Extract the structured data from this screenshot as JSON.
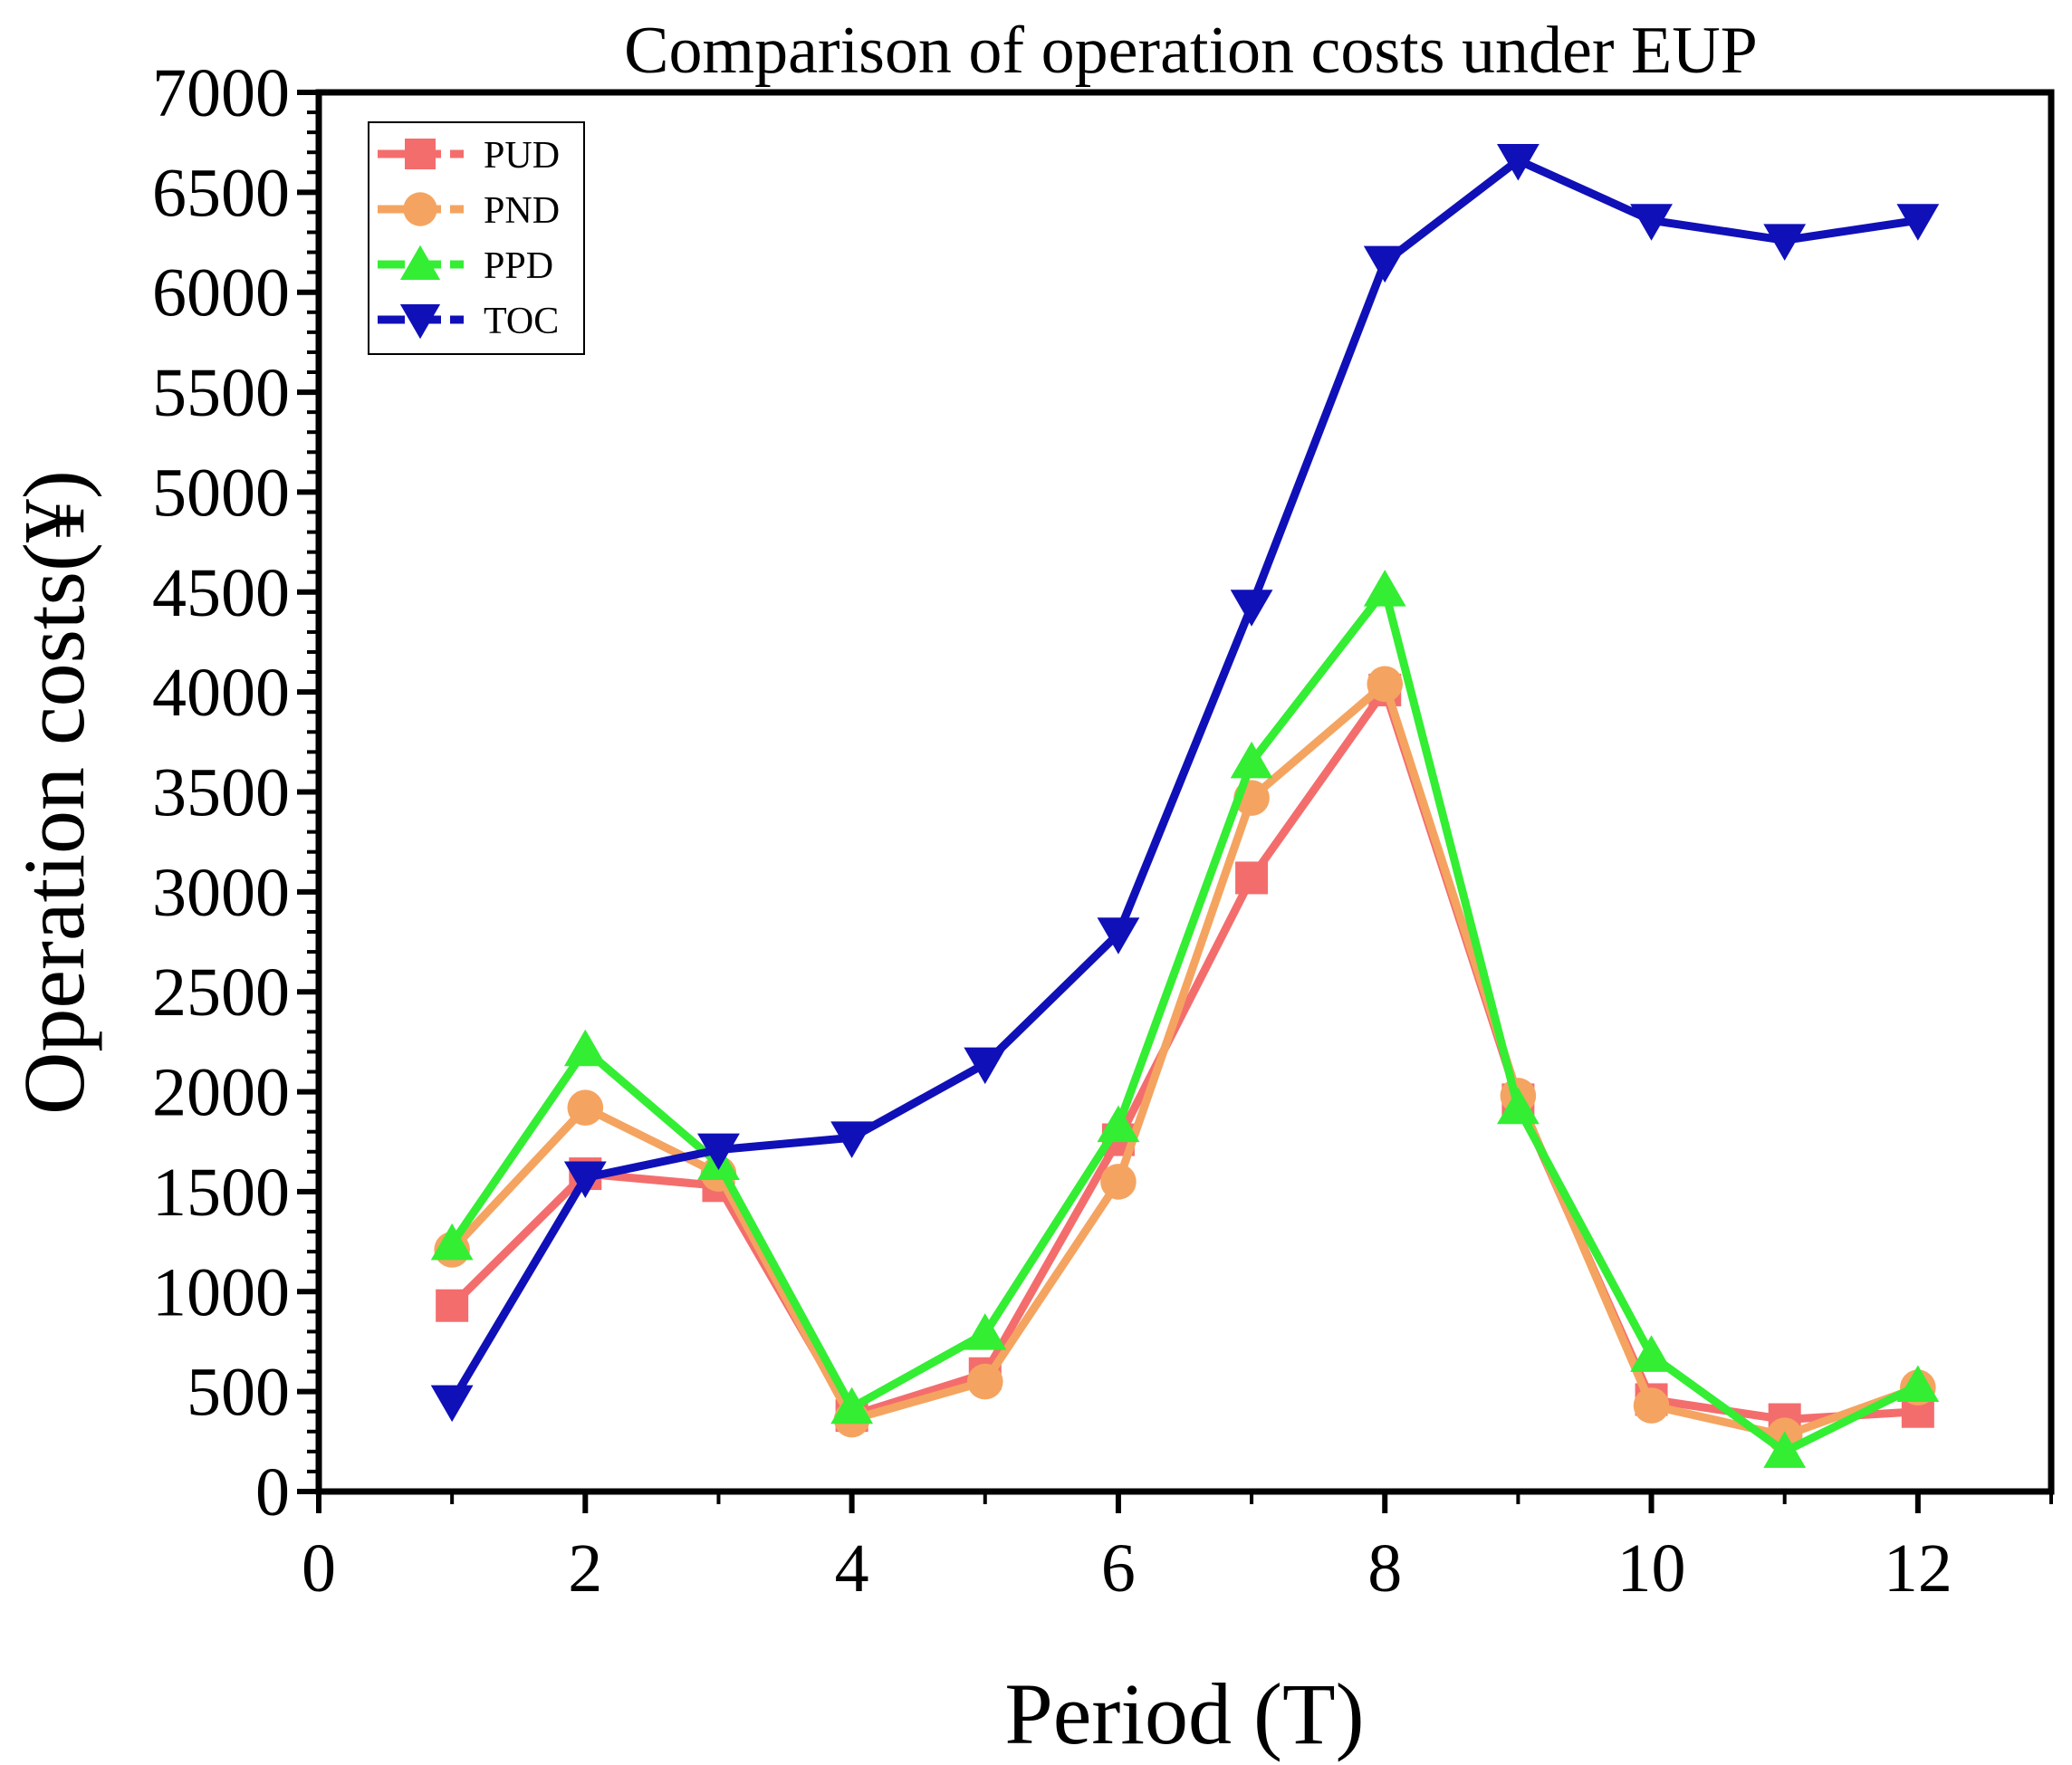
{
  "chart_data": {
    "type": "line",
    "title": "Comparison of operation costs under EUP",
    "xlabel": "Period (T)",
    "ylabel": "Operation costs(¥)",
    "xlim": [
      0,
      13
    ],
    "ylim": [
      0,
      7000
    ],
    "xticks": [
      "0",
      "2",
      "4",
      "6",
      "8",
      "10",
      "12"
    ],
    "yticks": [
      "0",
      "500",
      "1000",
      "1500",
      "2000",
      "2500",
      "3000",
      "3500",
      "4000",
      "4500",
      "5000",
      "5500",
      "6000",
      "6500",
      "7000"
    ],
    "legend_position": "top-left",
    "x": [
      1,
      2,
      3,
      4,
      5,
      6,
      7,
      8,
      9,
      10,
      11,
      12
    ],
    "series": [
      {
        "name": "PUD",
        "color": "#f46d6d",
        "marker": "square",
        "values": [
          930,
          1590,
          1530,
          380,
          590,
          1760,
          3070,
          4010,
          1960,
          460,
          360,
          400
        ]
      },
      {
        "name": "PND",
        "color": "#f4a460",
        "marker": "circle",
        "values": [
          1210,
          1920,
          1590,
          360,
          550,
          1550,
          3470,
          4040,
          1980,
          430,
          280,
          520
        ]
      },
      {
        "name": "PPD",
        "color": "#33ee33",
        "marker": "triangle-up",
        "values": [
          1240,
          2210,
          1640,
          420,
          790,
          1830,
          3650,
          4510,
          1920,
          680,
          200,
          530
        ]
      },
      {
        "name": "TOC",
        "color": "#1010b8",
        "marker": "triangle-down",
        "values": [
          450,
          1570,
          1710,
          1770,
          2140,
          2790,
          4430,
          6150,
          6660,
          6360,
          6260,
          6360
        ]
      }
    ]
  }
}
